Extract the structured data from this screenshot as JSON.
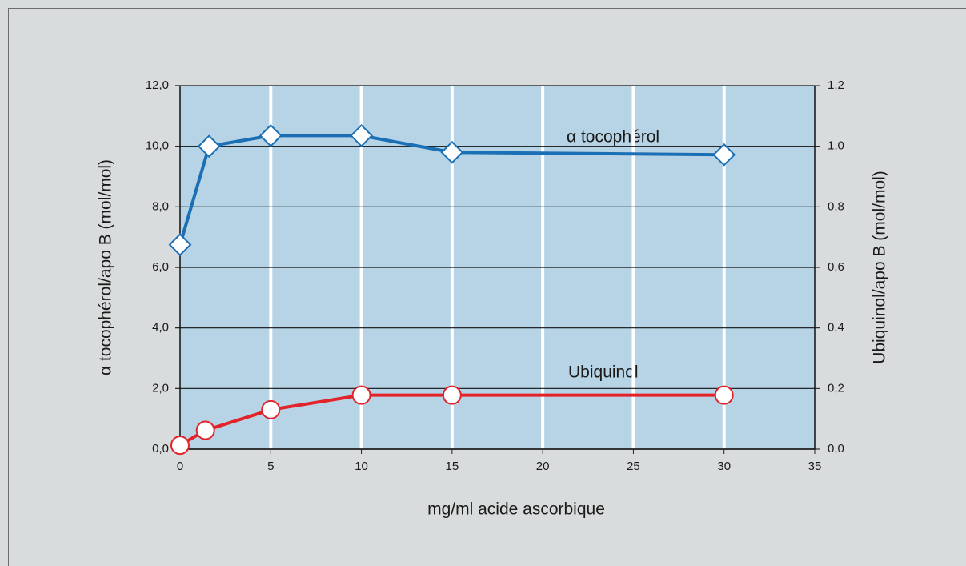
{
  "chart_data": {
    "type": "line",
    "xlabel": "mg/ml  acide ascorbique",
    "ylabel": "α tocophérol/apo B (mol/mol)",
    "y2label": "Ubiquinol/apo B (mol/mol)",
    "annotations": [
      "α tocophérol",
      "Ubiquinol"
    ],
    "xlim": [
      0,
      35
    ],
    "xticks": [
      0,
      5,
      10,
      15,
      20,
      25,
      30,
      35
    ],
    "ylim": [
      0,
      12
    ],
    "yticks": [
      {
        "value": 0,
        "label": "0,0"
      },
      {
        "value": 2,
        "label": "2,0"
      },
      {
        "value": 4,
        "label": "4,0"
      },
      {
        "value": 6,
        "label": "6,0"
      },
      {
        "value": 8,
        "label": "8,0"
      },
      {
        "value": 10,
        "label": "10,0"
      },
      {
        "value": 12,
        "label": "12,0"
      }
    ],
    "y2lim": [
      0,
      1.2
    ],
    "y2ticks": [
      {
        "value": 0,
        "label": "0,0"
      },
      {
        "value": 0.2,
        "label": "0,2"
      },
      {
        "value": 0.4,
        "label": "0,4"
      },
      {
        "value": 0.6,
        "label": "0,6"
      },
      {
        "value": 0.8,
        "label": "0,8"
      },
      {
        "value": 1,
        "label": "1,0"
      },
      {
        "value": 1.2,
        "label": "1,2"
      }
    ],
    "grid": true,
    "series": [
      {
        "color": "#1b6fb5",
        "marker": "diamond",
        "x": [
          0,
          1.6,
          5,
          10,
          15,
          30
        ],
        "values": [
          6.75,
          10.0,
          10.35,
          10.35,
          9.8,
          9.72
        ]
      },
      {
        "color": "#e2232a",
        "marker": "circle",
        "axis": "y2",
        "x": [
          0,
          1.4,
          5,
          10,
          15,
          30
        ],
        "values": [
          0.013,
          0.062,
          0.13,
          0.178,
          0.178,
          0.178
        ]
      }
    ]
  }
}
